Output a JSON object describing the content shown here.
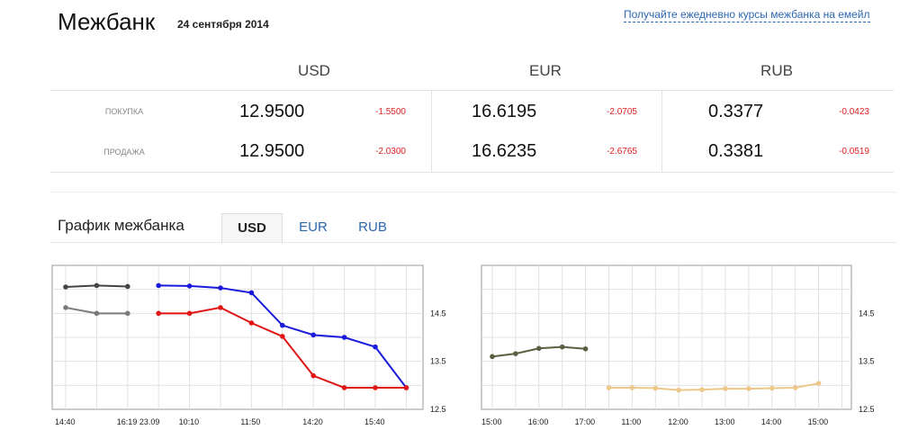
{
  "header": {
    "title": "Межбанк",
    "date": "24 сентября 2014",
    "email_link": "Получайте ежедневно курсы межбанка на емейл"
  },
  "rates": {
    "row_labels": {
      "buy": "ПОКУПКА",
      "sell": "ПРОДАЖА"
    },
    "currencies": [
      {
        "code": "USD",
        "buy": "12.9500",
        "buy_change": "-1.5500",
        "sell": "12.9500",
        "sell_change": "-2.0300"
      },
      {
        "code": "EUR",
        "buy": "16.6195",
        "buy_change": "-2.0705",
        "sell": "16.6235",
        "sell_change": "-2.6765"
      },
      {
        "code": "RUB",
        "buy": "0.3377",
        "buy_change": "-0.0423",
        "sell": "0.3381",
        "sell_change": "-0.0519"
      }
    ]
  },
  "chart_section": {
    "title": "График межбанка",
    "tabs": [
      {
        "label": "USD",
        "active": true
      },
      {
        "label": "EUR",
        "active": false
      },
      {
        "label": "RUB",
        "active": false
      }
    ]
  },
  "colors": {
    "red": "#e01414",
    "blue": "#1a1adc",
    "dark_gray": "#444444",
    "gray": "#7a7a7a",
    "olive": "#5a6041",
    "gold": "#ecc98a",
    "change_red": "#e02020",
    "link_blue": "#2c67b3"
  },
  "chart_data": [
    {
      "type": "line",
      "x_tick_labels": [
        "14:40",
        "16:19 23.09",
        "10:10",
        "11:50",
        "14:20",
        "15:40"
      ],
      "y_tick_labels": [
        "14.5",
        "13.5",
        "12.5"
      ],
      "ylim": [
        12.5,
        15.5
      ],
      "grid": true,
      "series": [
        {
          "color": "#444444",
          "x": [
            0,
            1,
            2
          ],
          "y": [
            15.05,
            15.08,
            15.06
          ]
        },
        {
          "color": "#7a7a7a",
          "x": [
            0,
            1,
            2
          ],
          "y": [
            14.62,
            14.5,
            14.5
          ]
        },
        {
          "color": "#1a1adc",
          "x": [
            3,
            4,
            5,
            6,
            7,
            8,
            9,
            10,
            11
          ],
          "y": [
            15.08,
            15.07,
            15.03,
            14.93,
            14.25,
            14.05,
            14.0,
            13.8,
            12.95
          ]
        },
        {
          "color": "#e01414",
          "x": [
            3,
            4,
            5,
            6,
            7,
            8,
            9,
            10,
            11
          ],
          "y": [
            14.5,
            14.5,
            14.62,
            14.3,
            14.02,
            13.2,
            12.95,
            12.95,
            12.95
          ]
        }
      ]
    },
    {
      "type": "line",
      "x_tick_labels": [
        "15:00",
        "16:00",
        "17:00",
        "11:00",
        "12:00",
        "13:00",
        "14:00",
        "15:00"
      ],
      "y_tick_labels": [
        "14.5",
        "13.5",
        "12.5"
      ],
      "ylim": [
        12.5,
        15.5
      ],
      "grid": true,
      "series": [
        {
          "color": "#5a6041",
          "x": [
            0,
            1,
            2,
            3,
            4
          ],
          "y": [
            13.6,
            13.66,
            13.77,
            13.8,
            13.76
          ]
        },
        {
          "color": "#ecc98a",
          "x": [
            5,
            6,
            7,
            8,
            9,
            10,
            11,
            12,
            13,
            14
          ],
          "y": [
            12.95,
            12.95,
            12.94,
            12.9,
            12.91,
            12.93,
            12.93,
            12.94,
            12.95,
            13.04
          ]
        }
      ]
    }
  ]
}
